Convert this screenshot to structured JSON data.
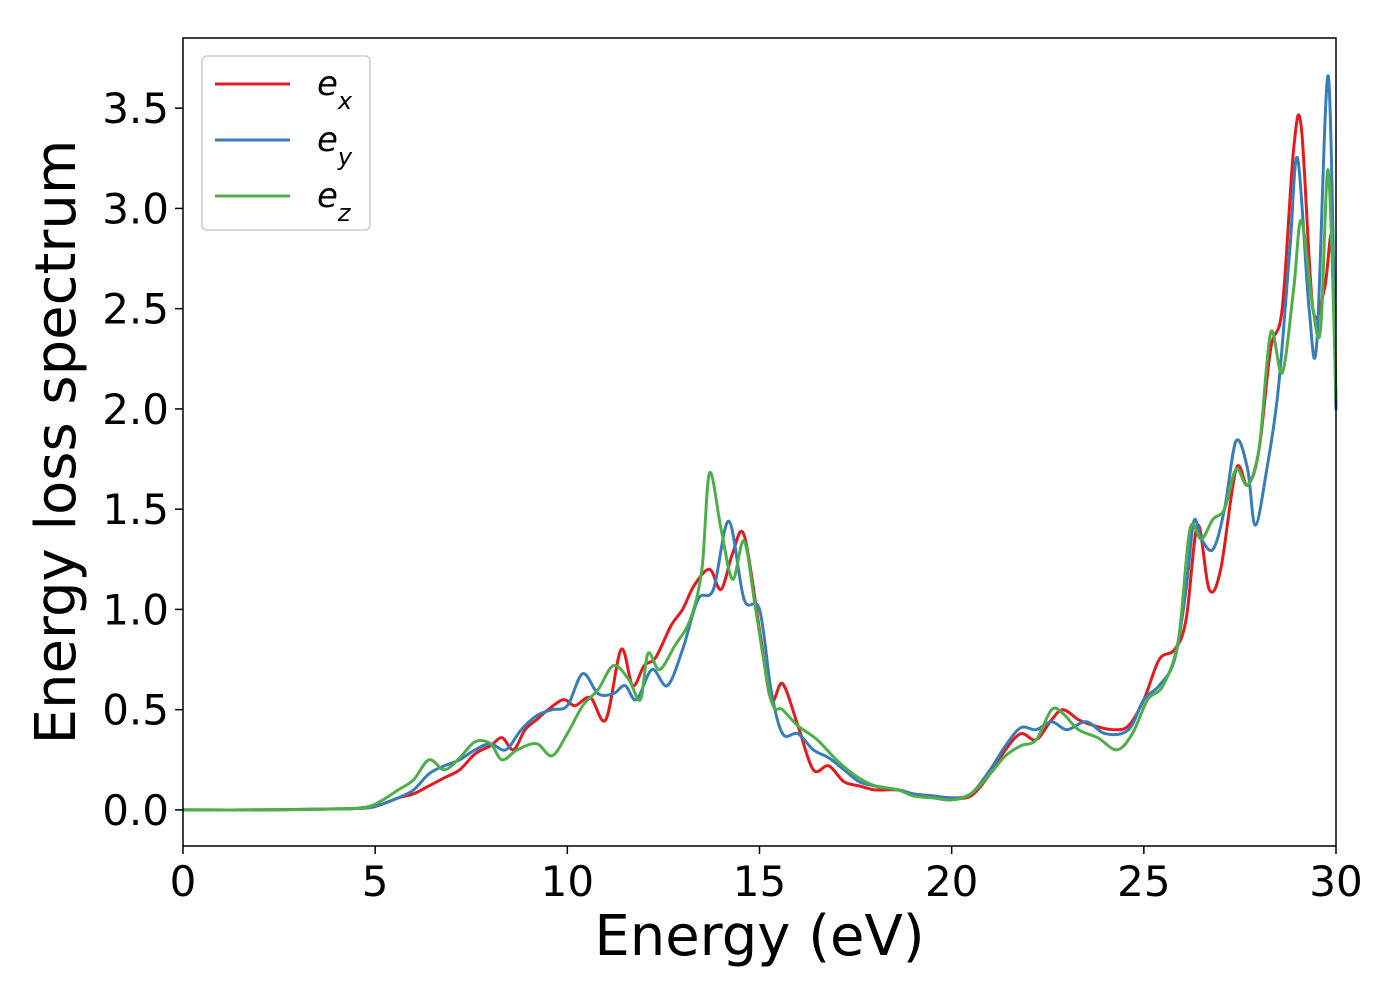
{
  "chart_data": {
    "type": "line",
    "title": "",
    "xlabel": "Energy (eV)",
    "ylabel": "Energy loss spectrum",
    "xlim": [
      0,
      30
    ],
    "ylim": [
      -0.18,
      3.85
    ],
    "xticks": [
      0,
      5,
      10,
      15,
      20,
      25,
      30
    ],
    "xtick_labels": [
      "0",
      "5",
      "10",
      "15",
      "20",
      "25",
      "30"
    ],
    "yticks": [
      0.0,
      0.5,
      1.0,
      1.5,
      2.0,
      2.5,
      3.0,
      3.5
    ],
    "ytick_labels": [
      "0.0",
      "0.5",
      "1.0",
      "1.5",
      "2.0",
      "2.5",
      "3.0",
      "3.5"
    ],
    "grid": false,
    "legend_position": "top-left",
    "series": [
      {
        "name": "e",
        "subscript": "x",
        "color": "#e41a1c",
        "points": [
          [
            0,
            0
          ],
          [
            2,
            0
          ],
          [
            4,
            0.005
          ],
          [
            4.8,
            0.01
          ],
          [
            5.2,
            0.03
          ],
          [
            5.6,
            0.06
          ],
          [
            6,
            0.08
          ],
          [
            6.4,
            0.12
          ],
          [
            6.8,
            0.16
          ],
          [
            7.2,
            0.2
          ],
          [
            7.6,
            0.28
          ],
          [
            8,
            0.32
          ],
          [
            8.3,
            0.36
          ],
          [
            8.6,
            0.3
          ],
          [
            8.9,
            0.4
          ],
          [
            9.2,
            0.45
          ],
          [
            9.5,
            0.5
          ],
          [
            9.9,
            0.55
          ],
          [
            10.2,
            0.52
          ],
          [
            10.6,
            0.56
          ],
          [
            11,
            0.45
          ],
          [
            11.4,
            0.8
          ],
          [
            11.7,
            0.62
          ],
          [
            12,
            0.72
          ],
          [
            12.3,
            0.76
          ],
          [
            12.7,
            0.92
          ],
          [
            13,
            1.0
          ],
          [
            13.3,
            1.12
          ],
          [
            13.7,
            1.2
          ],
          [
            14,
            1.1
          ],
          [
            14.3,
            1.28
          ],
          [
            14.6,
            1.37
          ],
          [
            15,
            0.9
          ],
          [
            15.3,
            0.55
          ],
          [
            15.6,
            0.63
          ],
          [
            16,
            0.42
          ],
          [
            16.4,
            0.2
          ],
          [
            16.8,
            0.22
          ],
          [
            17.2,
            0.14
          ],
          [
            17.6,
            0.12
          ],
          [
            18,
            0.1
          ],
          [
            18.6,
            0.1
          ],
          [
            19,
            0.08
          ],
          [
            19.5,
            0.07
          ],
          [
            20,
            0.06
          ],
          [
            20.5,
            0.07
          ],
          [
            21,
            0.18
          ],
          [
            21.4,
            0.3
          ],
          [
            21.8,
            0.38
          ],
          [
            22.2,
            0.35
          ],
          [
            22.6,
            0.45
          ],
          [
            22.9,
            0.5
          ],
          [
            23.3,
            0.45
          ],
          [
            23.7,
            0.42
          ],
          [
            24.2,
            0.4
          ],
          [
            24.6,
            0.42
          ],
          [
            25,
            0.55
          ],
          [
            25.4,
            0.75
          ],
          [
            25.8,
            0.8
          ],
          [
            26.1,
            0.95
          ],
          [
            26.4,
            1.42
          ],
          [
            26.7,
            1.1
          ],
          [
            27,
            1.2
          ],
          [
            27.4,
            1.7
          ],
          [
            27.7,
            1.62
          ],
          [
            28,
            1.8
          ],
          [
            28.3,
            2.3
          ],
          [
            28.6,
            2.5
          ],
          [
            28.9,
            3.3
          ],
          [
            29.1,
            3.4
          ],
          [
            29.4,
            2.5
          ],
          [
            29.7,
            2.6
          ],
          [
            29.9,
            2.85
          ],
          [
            30,
            2.0
          ]
        ]
      },
      {
        "name": "e",
        "subscript": "y",
        "color": "#377eb8",
        "points": [
          [
            0,
            0
          ],
          [
            2,
            0
          ],
          [
            4,
            0.005
          ],
          [
            4.8,
            0.01
          ],
          [
            5.2,
            0.03
          ],
          [
            5.6,
            0.06
          ],
          [
            6,
            0.1
          ],
          [
            6.4,
            0.18
          ],
          [
            6.8,
            0.22
          ],
          [
            7.2,
            0.25
          ],
          [
            7.6,
            0.3
          ],
          [
            8,
            0.33
          ],
          [
            8.4,
            0.3
          ],
          [
            8.8,
            0.4
          ],
          [
            9.2,
            0.47
          ],
          [
            9.6,
            0.5
          ],
          [
            10,
            0.52
          ],
          [
            10.4,
            0.68
          ],
          [
            10.8,
            0.58
          ],
          [
            11.2,
            0.58
          ],
          [
            11.5,
            0.62
          ],
          [
            11.8,
            0.55
          ],
          [
            12.2,
            0.7
          ],
          [
            12.6,
            0.62
          ],
          [
            13,
            0.8
          ],
          [
            13.4,
            1.05
          ],
          [
            13.8,
            1.1
          ],
          [
            14.2,
            1.44
          ],
          [
            14.6,
            1.05
          ],
          [
            15,
            1.0
          ],
          [
            15.3,
            0.6
          ],
          [
            15.6,
            0.38
          ],
          [
            16,
            0.38
          ],
          [
            16.4,
            0.3
          ],
          [
            16.8,
            0.26
          ],
          [
            17.2,
            0.2
          ],
          [
            17.6,
            0.14
          ],
          [
            18,
            0.12
          ],
          [
            18.6,
            0.1
          ],
          [
            19,
            0.08
          ],
          [
            19.5,
            0.07
          ],
          [
            20,
            0.06
          ],
          [
            20.5,
            0.08
          ],
          [
            21,
            0.2
          ],
          [
            21.4,
            0.32
          ],
          [
            21.8,
            0.41
          ],
          [
            22.2,
            0.4
          ],
          [
            22.6,
            0.44
          ],
          [
            23,
            0.4
          ],
          [
            23.5,
            0.44
          ],
          [
            24,
            0.38
          ],
          [
            24.6,
            0.4
          ],
          [
            25,
            0.55
          ],
          [
            25.4,
            0.62
          ],
          [
            25.8,
            0.75
          ],
          [
            26.1,
            1.1
          ],
          [
            26.3,
            1.44
          ],
          [
            26.5,
            1.35
          ],
          [
            26.8,
            1.3
          ],
          [
            27.1,
            1.5
          ],
          [
            27.4,
            1.84
          ],
          [
            27.7,
            1.7
          ],
          [
            27.9,
            1.42
          ],
          [
            28.2,
            1.7
          ],
          [
            28.5,
            2.1
          ],
          [
            28.8,
            2.8
          ],
          [
            29,
            3.25
          ],
          [
            29.3,
            2.5
          ],
          [
            29.5,
            2.33
          ],
          [
            29.8,
            3.66
          ],
          [
            30,
            2.0
          ]
        ]
      },
      {
        "name": "e",
        "subscript": "z",
        "color": "#4daf4a",
        "points": [
          [
            0,
            0
          ],
          [
            2,
            0
          ],
          [
            4,
            0.005
          ],
          [
            4.8,
            0.015
          ],
          [
            5.2,
            0.05
          ],
          [
            5.6,
            0.1
          ],
          [
            6,
            0.15
          ],
          [
            6.4,
            0.25
          ],
          [
            6.8,
            0.2
          ],
          [
            7.2,
            0.26
          ],
          [
            7.6,
            0.34
          ],
          [
            8,
            0.33
          ],
          [
            8.3,
            0.25
          ],
          [
            8.7,
            0.3
          ],
          [
            9.2,
            0.33
          ],
          [
            9.6,
            0.27
          ],
          [
            10,
            0.38
          ],
          [
            10.4,
            0.52
          ],
          [
            10.8,
            0.6
          ],
          [
            11.2,
            0.72
          ],
          [
            11.6,
            0.65
          ],
          [
            11.9,
            0.55
          ],
          [
            12.1,
            0.78
          ],
          [
            12.4,
            0.7
          ],
          [
            12.8,
            0.82
          ],
          [
            13.2,
            0.95
          ],
          [
            13.5,
            1.2
          ],
          [
            13.7,
            1.68
          ],
          [
            14,
            1.4
          ],
          [
            14.3,
            1.15
          ],
          [
            14.6,
            1.34
          ],
          [
            14.9,
            1.0
          ],
          [
            15.3,
            0.55
          ],
          [
            15.6,
            0.5
          ],
          [
            16,
            0.42
          ],
          [
            16.5,
            0.35
          ],
          [
            17,
            0.25
          ],
          [
            17.5,
            0.17
          ],
          [
            18,
            0.12
          ],
          [
            18.6,
            0.1
          ],
          [
            19,
            0.07
          ],
          [
            19.5,
            0.06
          ],
          [
            20,
            0.05
          ],
          [
            20.5,
            0.08
          ],
          [
            21,
            0.18
          ],
          [
            21.4,
            0.27
          ],
          [
            21.8,
            0.32
          ],
          [
            22.2,
            0.35
          ],
          [
            22.6,
            0.5
          ],
          [
            22.9,
            0.48
          ],
          [
            23.3,
            0.4
          ],
          [
            23.8,
            0.36
          ],
          [
            24.3,
            0.3
          ],
          [
            24.7,
            0.38
          ],
          [
            25.1,
            0.55
          ],
          [
            25.5,
            0.62
          ],
          [
            25.9,
            0.85
          ],
          [
            26.2,
            1.4
          ],
          [
            26.5,
            1.35
          ],
          [
            26.8,
            1.45
          ],
          [
            27.1,
            1.5
          ],
          [
            27.4,
            1.7
          ],
          [
            27.7,
            1.62
          ],
          [
            28,
            1.8
          ],
          [
            28.3,
            2.38
          ],
          [
            28.6,
            2.18
          ],
          [
            28.9,
            2.6
          ],
          [
            29.1,
            2.94
          ],
          [
            29.4,
            2.5
          ],
          [
            29.6,
            2.4
          ],
          [
            29.8,
            3.19
          ],
          [
            30,
            2.05
          ]
        ]
      }
    ]
  }
}
